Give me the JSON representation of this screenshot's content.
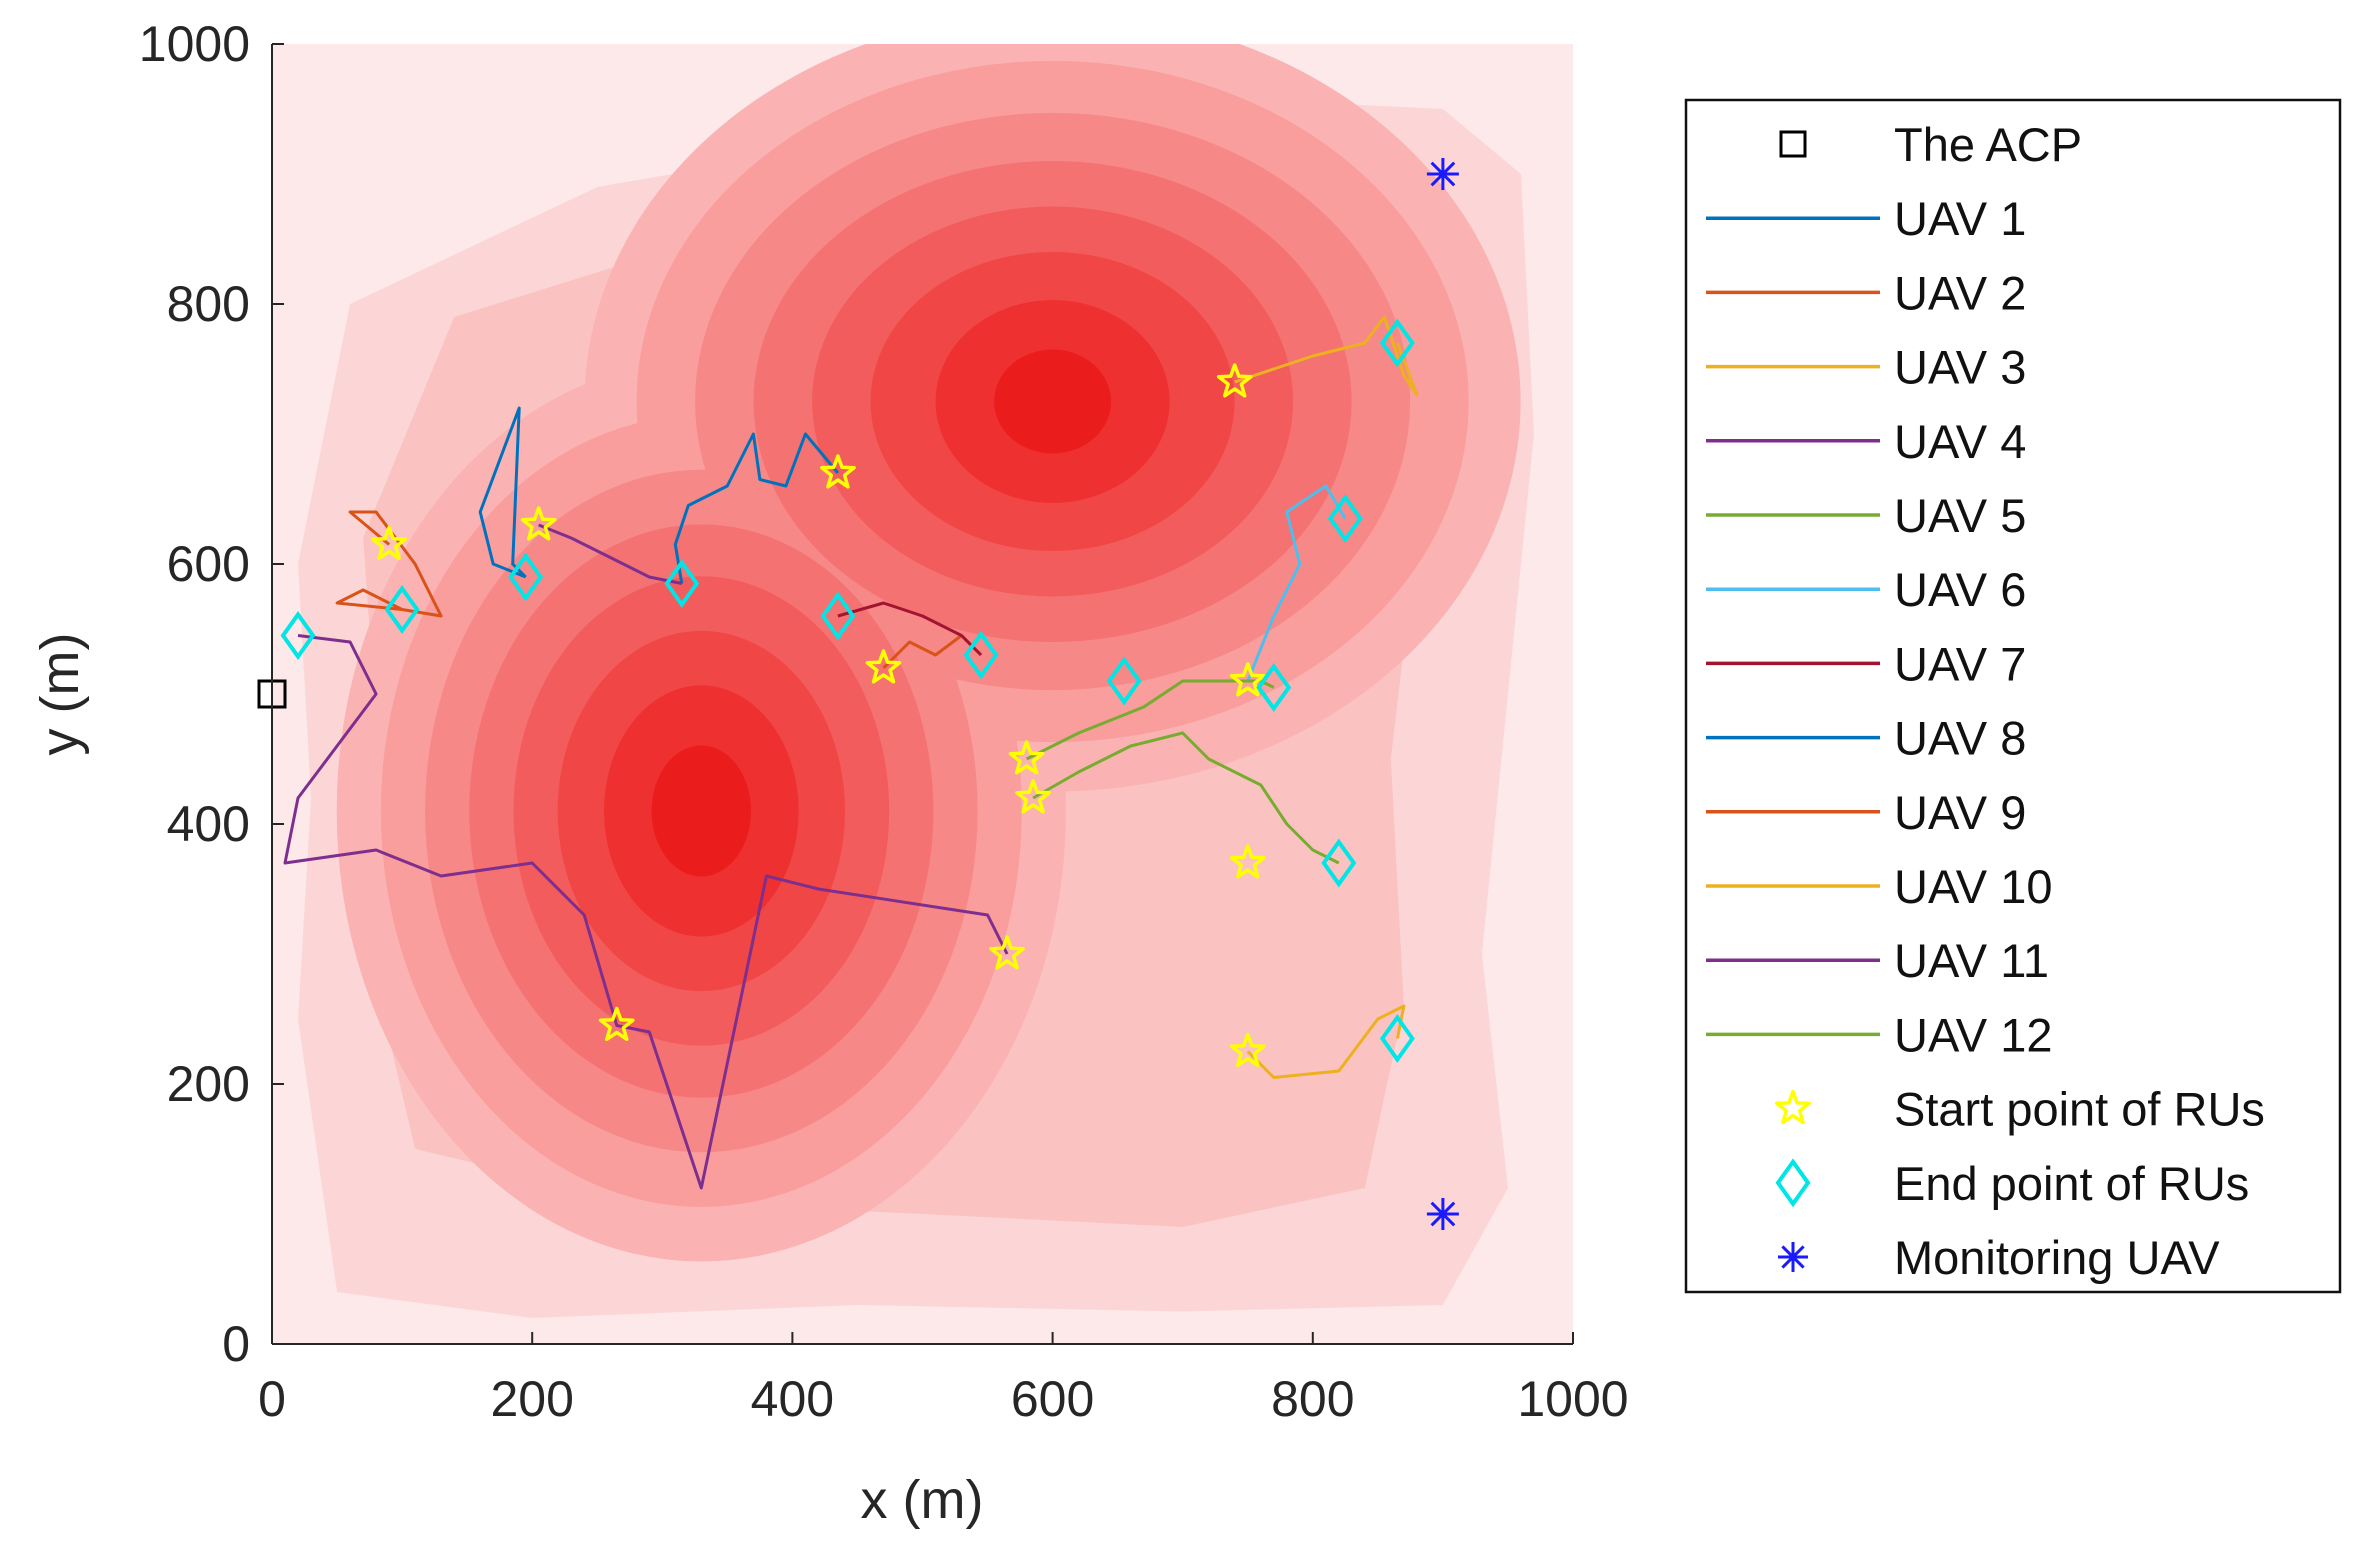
{
  "chart_data": {
    "type": "line",
    "title": "",
    "xlabel": "x (m)",
    "ylabel": "y (m)",
    "xlim": [
      0,
      1000
    ],
    "ylim": [
      0,
      1000
    ],
    "xticks": [
      "0",
      "200",
      "400",
      "600",
      "800",
      "1000"
    ],
    "yticks": [
      "0",
      "200",
      "400",
      "600",
      "800",
      "1000"
    ],
    "background": {
      "type": "contour",
      "colormap": "red",
      "peaks": [
        {
          "x": 600,
          "y": 725
        },
        {
          "x": 330,
          "y": 410
        }
      ]
    },
    "acp": {
      "label": "The ACP",
      "x": 0,
      "y": 500
    },
    "monitoring_uavs": {
      "label": "Monitoring UAV",
      "color": "#1a1aff",
      "points": [
        [
          900,
          900
        ],
        [
          900,
          100
        ]
      ]
    },
    "start_points": {
      "label": "Start point of RUs",
      "color": "#ffff00",
      "points": [
        [
          90,
          615
        ],
        [
          205,
          630
        ],
        [
          435,
          670
        ],
        [
          470,
          520
        ],
        [
          565,
          300
        ],
        [
          265,
          245
        ],
        [
          580,
          450
        ],
        [
          585,
          420
        ],
        [
          740,
          740
        ],
        [
          750,
          510
        ],
        [
          750,
          370
        ],
        [
          750,
          225
        ]
      ]
    },
    "end_points": {
      "label": "End point of RUs",
      "color": "#00e5e5",
      "points": [
        [
          20,
          545
        ],
        [
          100,
          565
        ],
        [
          195,
          590
        ],
        [
          315,
          585
        ],
        [
          435,
          560
        ],
        [
          545,
          530
        ],
        [
          655,
          510
        ],
        [
          770,
          505
        ],
        [
          825,
          635
        ],
        [
          820,
          370
        ],
        [
          865,
          770
        ],
        [
          865,
          235
        ]
      ]
    },
    "series": [
      {
        "name": "UAV 1",
        "color": "#0072bd",
        "points": [
          [
            435,
            670
          ],
          [
            410,
            700
          ],
          [
            395,
            660
          ],
          [
            375,
            665
          ],
          [
            370,
            700
          ],
          [
            350,
            660
          ],
          [
            320,
            645
          ],
          [
            310,
            615
          ],
          [
            315,
            585
          ]
        ]
      },
      {
        "name": "UAV 2",
        "color": "#d95319",
        "points": [
          [
            470,
            520
          ],
          [
            490,
            540
          ],
          [
            510,
            530
          ],
          [
            530,
            545
          ],
          [
            545,
            530
          ]
        ]
      },
      {
        "name": "UAV 3",
        "color": "#edb120",
        "points": [
          [
            740,
            740
          ],
          [
            770,
            750
          ],
          [
            800,
            760
          ],
          [
            840,
            770
          ],
          [
            855,
            790
          ],
          [
            870,
            745
          ],
          [
            880,
            730
          ],
          [
            865,
            770
          ]
        ]
      },
      {
        "name": "UAV 4",
        "color": "#7e2f8e",
        "points": [
          [
            205,
            630
          ],
          [
            230,
            620
          ],
          [
            250,
            610
          ],
          [
            270,
            600
          ],
          [
            290,
            590
          ],
          [
            315,
            585
          ]
        ]
      },
      {
        "name": "UAV 5",
        "color": "#77ac30",
        "points": [
          [
            585,
            420
          ],
          [
            620,
            440
          ],
          [
            660,
            460
          ],
          [
            700,
            470
          ],
          [
            720,
            450
          ],
          [
            760,
            430
          ],
          [
            780,
            400
          ],
          [
            800,
            380
          ],
          [
            820,
            370
          ]
        ]
      },
      {
        "name": "UAV 6",
        "color": "#4dbeee",
        "points": [
          [
            750,
            510
          ],
          [
            770,
            560
          ],
          [
            790,
            600
          ],
          [
            780,
            640
          ],
          [
            810,
            660
          ],
          [
            825,
            635
          ]
        ]
      },
      {
        "name": "UAV 7",
        "color": "#a2142f",
        "points": [
          [
            435,
            560
          ],
          [
            470,
            570
          ],
          [
            500,
            560
          ],
          [
            530,
            545
          ],
          [
            545,
            530
          ]
        ]
      },
      {
        "name": "UAV 8",
        "color": "#0072bd",
        "points": [
          [
            195,
            590
          ],
          [
            170,
            600
          ],
          [
            160,
            640
          ],
          [
            175,
            680
          ],
          [
            190,
            720
          ],
          [
            185,
            600
          ],
          [
            195,
            590
          ]
        ]
      },
      {
        "name": "UAV 9",
        "color": "#d95319",
        "points": [
          [
            90,
            615
          ],
          [
            60,
            640
          ],
          [
            80,
            640
          ],
          [
            110,
            600
          ],
          [
            130,
            560
          ],
          [
            100,
            565
          ],
          [
            70,
            580
          ],
          [
            50,
            570
          ],
          [
            100,
            565
          ]
        ]
      },
      {
        "name": "UAV 10",
        "color": "#edb120",
        "points": [
          [
            750,
            225
          ],
          [
            770,
            205
          ],
          [
            820,
            210
          ],
          [
            850,
            250
          ],
          [
            870,
            260
          ],
          [
            865,
            235
          ]
        ]
      },
      {
        "name": "UAV 11",
        "color": "#7e2f8e",
        "points": [
          [
            565,
            300
          ],
          [
            550,
            330
          ],
          [
            420,
            350
          ],
          [
            380,
            360
          ],
          [
            330,
            120
          ],
          [
            290,
            240
          ],
          [
            265,
            245
          ],
          [
            240,
            330
          ],
          [
            200,
            370
          ],
          [
            130,
            360
          ],
          [
            80,
            380
          ],
          [
            10,
            370
          ],
          [
            20,
            420
          ],
          [
            80,
            500
          ],
          [
            60,
            540
          ],
          [
            20,
            545
          ]
        ]
      },
      {
        "name": "UAV 12",
        "color": "#77ac30",
        "points": [
          [
            580,
            450
          ],
          [
            620,
            470
          ],
          [
            670,
            490
          ],
          [
            700,
            510
          ],
          [
            760,
            510
          ],
          [
            770,
            505
          ]
        ]
      }
    ]
  }
}
